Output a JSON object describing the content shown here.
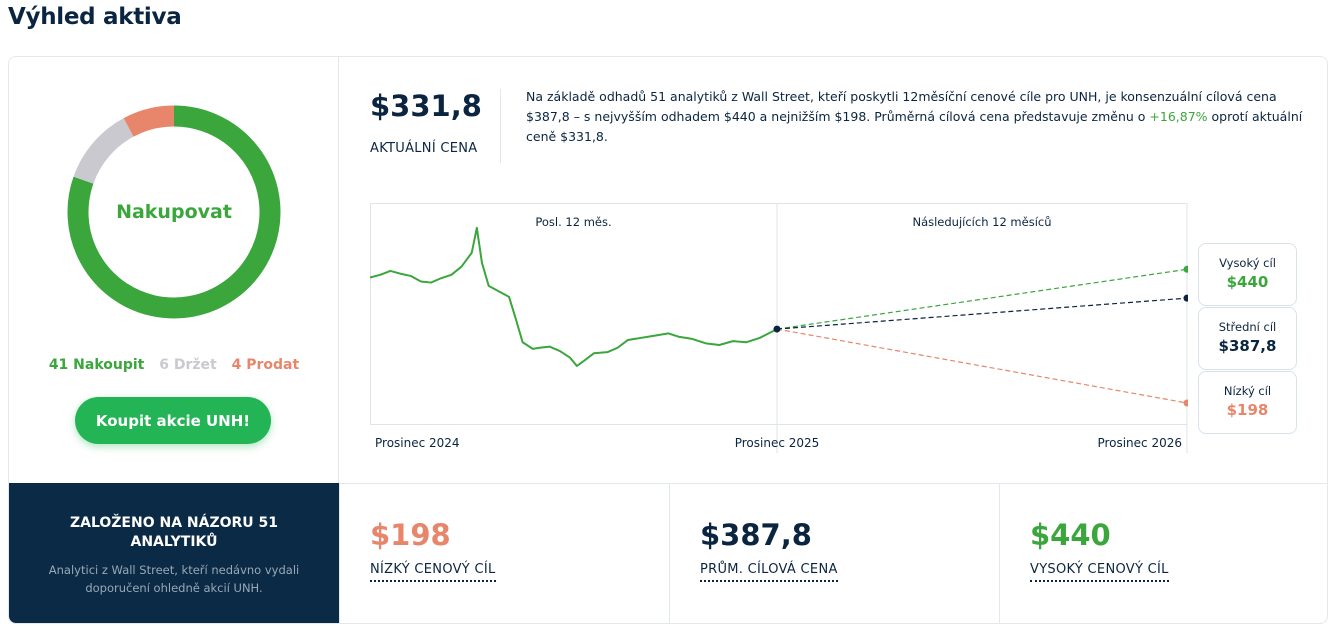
{
  "page_title": "Výhled aktiva",
  "consensus": {
    "rating": "Nakupovat",
    "buy_label": "41 Nakoupit",
    "hold_label": "6 Držet",
    "sell_label": "4 Prodat",
    "buy_count": 41,
    "hold_count": 6,
    "sell_count": 4,
    "cta_label": "Koupit akcie UNH!"
  },
  "current_price": {
    "value": "$331,8",
    "label": "AKTUÁLNÍ CENA"
  },
  "summary": {
    "text_before": "Na základě odhadů 51 analytiků z Wall Street, kteří poskytli 12měsíční cenové cíle pro UNH, je konsenzuální cílová cena $387,8 – s nejvyšším odhadem $440 a nejnižším $198. Průměrná cílová cena představuje změnu o ",
    "change_pct": "+16,87%",
    "text_after": " oprotí aktuální ceně $331,8."
  },
  "chart_data": {
    "type": "line",
    "section_labels": [
      "Posl. 12 měs.",
      "Následujících 12 měsíců"
    ],
    "x_labels": [
      "Prosinec 2024",
      "Prosinec 2025",
      "Prosinec 2026"
    ],
    "history": [
      [
        0,
        425
      ],
      [
        0.3,
        430
      ],
      [
        0.6,
        437
      ],
      [
        0.9,
        432
      ],
      [
        1.2,
        428
      ],
      [
        1.5,
        418
      ],
      [
        1.8,
        416
      ],
      [
        2.1,
        424
      ],
      [
        2.4,
        430
      ],
      [
        2.7,
        445
      ],
      [
        3.0,
        470
      ],
      [
        3.15,
        515
      ],
      [
        3.3,
        452
      ],
      [
        3.5,
        410
      ],
      [
        3.8,
        400
      ],
      [
        4.1,
        390
      ],
      [
        4.3,
        350
      ],
      [
        4.5,
        308
      ],
      [
        4.8,
        296
      ],
      [
        5.0,
        298
      ],
      [
        5.3,
        300
      ],
      [
        5.6,
        292
      ],
      [
        5.9,
        280
      ],
      [
        6.1,
        265
      ],
      [
        6.3,
        274
      ],
      [
        6.6,
        288
      ],
      [
        7.0,
        290
      ],
      [
        7.3,
        298
      ],
      [
        7.6,
        312
      ],
      [
        8.0,
        316
      ],
      [
        8.4,
        320
      ],
      [
        8.8,
        324
      ],
      [
        9.1,
        318
      ],
      [
        9.5,
        314
      ],
      [
        9.9,
        306
      ],
      [
        10.3,
        303
      ],
      [
        10.7,
        310
      ],
      [
        11.1,
        308
      ],
      [
        11.5,
        316
      ],
      [
        12.0,
        331.8
      ]
    ],
    "current": 331.8,
    "targets": {
      "high": 440,
      "avg": 387.8,
      "low": 198
    },
    "colors": {
      "history": "#3aa63c",
      "high": "#3aa63c",
      "avg": "#0b2540",
      "low": "#e8866b"
    }
  },
  "target_boxes": {
    "high": {
      "label": "Vysoký cíl",
      "value": "$440"
    },
    "avg": {
      "label": "Střední cíl",
      "value": "$387,8"
    },
    "low": {
      "label": "Nízký cíl",
      "value": "$198"
    }
  },
  "analysts_panel": {
    "title": "ZALOŽENO NA NÁZORU 51 ANALYTIKŮ",
    "subtitle": "Analytici z Wall Street, kteří nedávno vydali doporučení ohledně akcií UNH."
  },
  "stats": {
    "low": {
      "value": "$198",
      "label": "NÍZKÝ CENOVÝ CÍL"
    },
    "avg": {
      "value": "$387,8",
      "label": "PRŮM. CÍLOVÁ CENA"
    },
    "high": {
      "value": "$440",
      "label": "VYSOKÝ CENOVÝ CÍL"
    }
  },
  "colors": {
    "buy": "#3aa63c",
    "hold": "#c9c9cf",
    "sell": "#e8866b",
    "navy": "#0b2540",
    "cta": "#22b455"
  }
}
